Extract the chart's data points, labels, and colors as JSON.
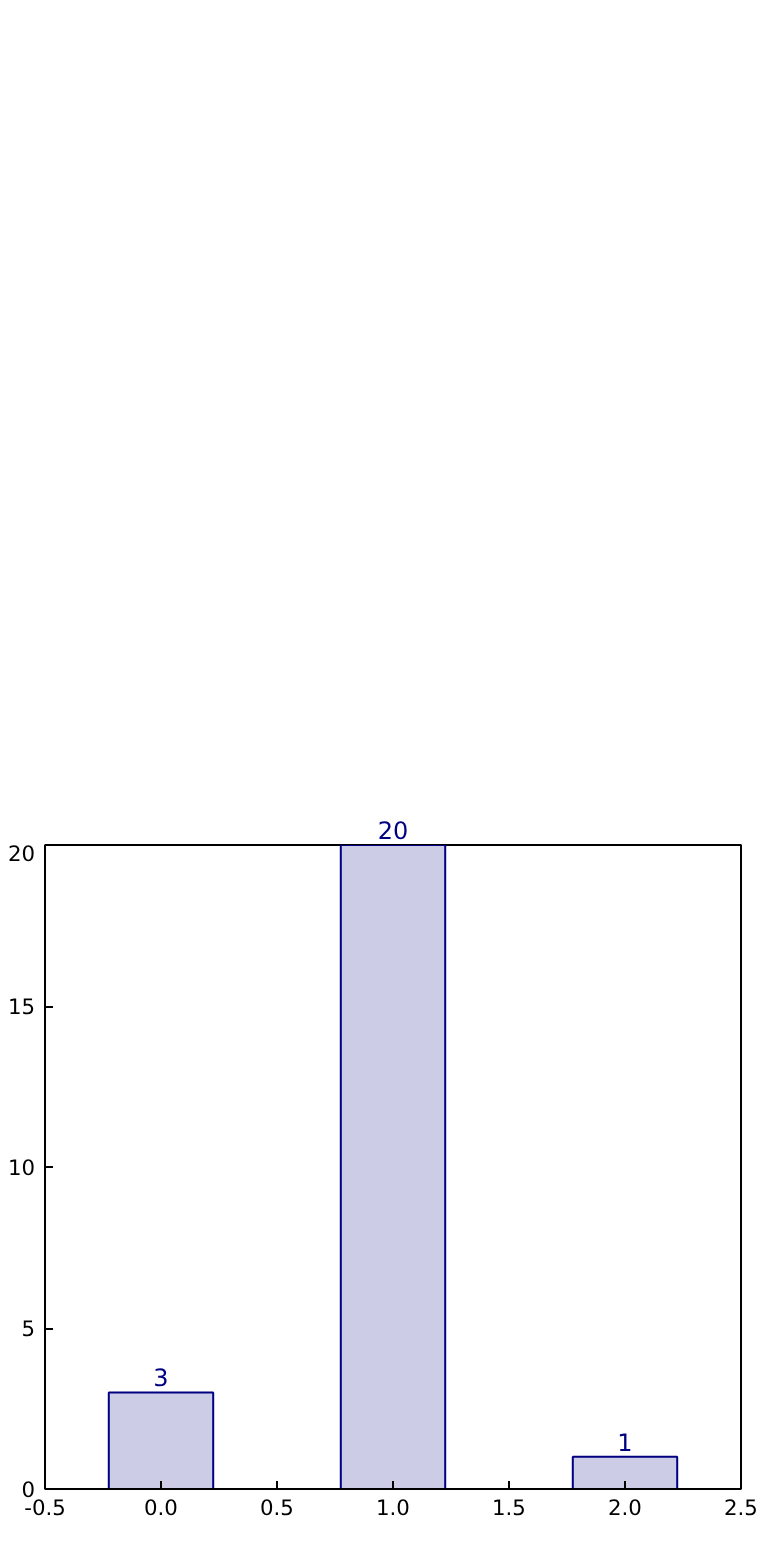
{
  "chart_data": {
    "type": "bar",
    "x": [
      0,
      1,
      2
    ],
    "values": [
      3,
      20,
      1
    ],
    "color": "#cccce6",
    "xlim": [
      -0.5,
      2.5
    ],
    "xticks": [
      {
        "value": -0.5,
        "label": "-0.5"
      },
      {
        "value": 0,
        "label": "0.0"
      },
      {
        "value": 0.5,
        "label": "0.5"
      },
      {
        "value": 1,
        "label": "1.0"
      },
      {
        "value": 1.5,
        "label": "1.5"
      },
      {
        "value": 2,
        "label": "2.0"
      },
      {
        "value": 2.5,
        "label": "2.5"
      }
    ],
    "ylim": [
      0,
      20
    ],
    "yticks": [
      0,
      5,
      10,
      15,
      20
    ],
    "data_labels": true,
    "grid": false
  }
}
